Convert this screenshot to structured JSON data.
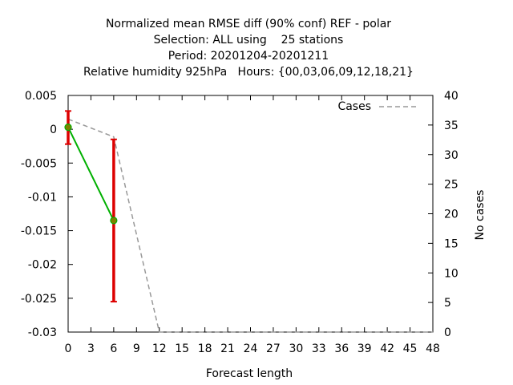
{
  "title_lines": [
    "Normalized mean RMSE diff (90% conf) REF - polar",
    "Selection: ALL using    25 stations",
    "Period: 20201204-20201211",
    "Relative humidity 925hPa   Hours: {00,03,06,09,12,18,21}"
  ],
  "chart_data": {
    "type": "line",
    "xlabel": "Forecast length",
    "ylabel": "",
    "y2label": "No cases",
    "xlim": [
      0,
      48
    ],
    "ylim": [
      -0.03,
      0.005
    ],
    "y2lim": [
      0,
      40
    ],
    "x_ticks": [
      0,
      3,
      6,
      9,
      12,
      15,
      18,
      21,
      24,
      27,
      30,
      33,
      36,
      39,
      42,
      45,
      48
    ],
    "y_ticks": [
      "0.005",
      "0",
      "-0.005",
      "-0.01",
      "-0.015",
      "-0.02",
      "-0.025",
      "-0.03"
    ],
    "y_tick_values": [
      0.005,
      0,
      -0.005,
      -0.01,
      -0.015,
      -0.02,
      -0.025,
      -0.03
    ],
    "y2_ticks": [
      0,
      5,
      10,
      15,
      20,
      25,
      30,
      35,
      40
    ],
    "legend_position": "top-right",
    "series": [
      {
        "name": "",
        "color": "#00b000",
        "marker_color": "#808000",
        "x": [
          0,
          6
        ],
        "y": [
          0.0003,
          -0.0135
        ],
        "error_low": [
          -0.0022,
          -0.0255
        ],
        "error_high": [
          0.0027,
          -0.0015
        ],
        "error_color": "#dd0000"
      },
      {
        "name": "Cases",
        "axis": "y2",
        "color": "#999999",
        "dashed": true,
        "x": [
          0,
          6,
          12,
          48
        ],
        "y": [
          36,
          33,
          0,
          0
        ]
      }
    ]
  }
}
